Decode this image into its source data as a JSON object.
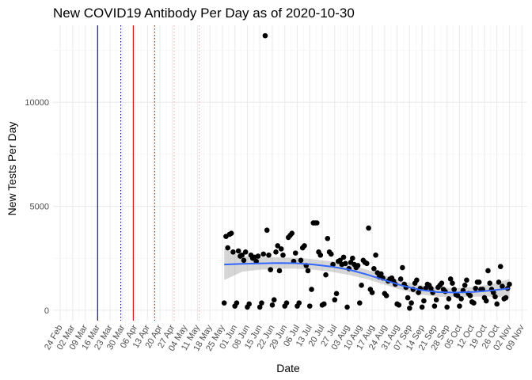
{
  "chart_data": {
    "type": "scatter",
    "title": "New COVID19 Antibody Per Day as of 2020-10-30",
    "xlabel": "Date",
    "ylabel": "New Tests Per Day",
    "x_range": [
      "2020-02-20",
      "2020-11-12"
    ],
    "ylim": [
      -500,
      13700
    ],
    "y_ticks": [
      0,
      5000,
      10000
    ],
    "y_tick_labels": [
      "0",
      "5000",
      "10000"
    ],
    "x_ticks": [
      "2020-02-24",
      "2020-03-02",
      "2020-03-09",
      "2020-03-16",
      "2020-03-23",
      "2020-03-30",
      "2020-04-06",
      "2020-04-13",
      "2020-04-20",
      "2020-04-27",
      "2020-05-04",
      "2020-05-11",
      "2020-05-18",
      "2020-05-25",
      "2020-06-01",
      "2020-06-08",
      "2020-06-15",
      "2020-06-22",
      "2020-06-29",
      "2020-07-06",
      "2020-07-13",
      "2020-07-20",
      "2020-07-27",
      "2020-08-03",
      "2020-08-10",
      "2020-08-17",
      "2020-08-24",
      "2020-08-31",
      "2020-09-07",
      "2020-09-14",
      "2020-09-21",
      "2020-09-28",
      "2020-10-05",
      "2020-10-12",
      "2020-10-19",
      "2020-10-26",
      "2020-11-02",
      "2020-11-09"
    ],
    "x_tick_labels": [
      "24 Feb",
      "02 Mar",
      "09 Mar",
      "16 Mar",
      "23 Mar",
      "30 Mar",
      "06 Apr",
      "13 Apr",
      "20 Apr",
      "27 Apr",
      "04 May",
      "11 May",
      "18 May",
      "25 May",
      "01 Jun",
      "08 Jun",
      "15 Jun",
      "22 Jun",
      "29 Jun",
      "06 Jul",
      "13 Jul",
      "20 Jul",
      "27 Jul",
      "03 Aug",
      "10 Aug",
      "17 Aug",
      "24 Aug",
      "31 Aug",
      "07 Sep",
      "14 Sep",
      "21 Sep",
      "28 Sep",
      "05 Oct",
      "12 Oct",
      "19 Oct",
      "26 Oct",
      "02 Nov",
      "09 Nov"
    ],
    "grid": true,
    "vertical_lines": [
      {
        "x": "2020-03-16",
        "color": "#00008b",
        "style": "solid"
      },
      {
        "x": "2020-03-29",
        "color": "#00008b",
        "style": "dotted"
      },
      {
        "x": "2020-04-05",
        "color": "#cc0000",
        "style": "solid"
      },
      {
        "x": "2020-04-17",
        "color": "#cc0000",
        "style": "dotted"
      },
      {
        "x": "2020-04-28",
        "color": "#f4b0b0",
        "style": "dotted"
      },
      {
        "x": "2020-05-12",
        "color": "#f4b0b0",
        "style": "dotted"
      }
    ],
    "point_color": "#000000",
    "trend_color": "#3366ff",
    "band_color": "#999999",
    "points": [
      {
        "x": "2020-05-26",
        "y": 350
      },
      {
        "x": "2020-05-27",
        "y": 3550
      },
      {
        "x": "2020-05-28",
        "y": 3000
      },
      {
        "x": "2020-05-29",
        "y": 3650
      },
      {
        "x": "2020-05-30",
        "y": 3700
      },
      {
        "x": "2020-05-31",
        "y": 2800
      },
      {
        "x": "2020-06-01",
        "y": 200
      },
      {
        "x": "2020-06-02",
        "y": 350
      },
      {
        "x": "2020-06-03",
        "y": 2850
      },
      {
        "x": "2020-06-04",
        "y": 2600
      },
      {
        "x": "2020-06-05",
        "y": 2650
      },
      {
        "x": "2020-06-06",
        "y": 2400
      },
      {
        "x": "2020-06-07",
        "y": 2800
      },
      {
        "x": "2020-06-08",
        "y": 150
      },
      {
        "x": "2020-06-09",
        "y": 300
      },
      {
        "x": "2020-06-10",
        "y": 2650
      },
      {
        "x": "2020-06-11",
        "y": 2500
      },
      {
        "x": "2020-06-12",
        "y": 2550
      },
      {
        "x": "2020-06-13",
        "y": 2350
      },
      {
        "x": "2020-06-14",
        "y": 2600
      },
      {
        "x": "2020-06-15",
        "y": 150
      },
      {
        "x": "2020-06-16",
        "y": 350
      },
      {
        "x": "2020-06-17",
        "y": 2700
      },
      {
        "x": "2020-06-18",
        "y": 13200
      },
      {
        "x": "2020-06-19",
        "y": 3850
      },
      {
        "x": "2020-06-20",
        "y": 2650
      },
      {
        "x": "2020-06-21",
        "y": 1950
      },
      {
        "x": "2020-06-22",
        "y": 250
      },
      {
        "x": "2020-06-23",
        "y": 500
      },
      {
        "x": "2020-06-24",
        "y": 2800
      },
      {
        "x": "2020-06-25",
        "y": 3100
      },
      {
        "x": "2020-06-26",
        "y": 1900
      },
      {
        "x": "2020-06-27",
        "y": 2950
      },
      {
        "x": "2020-06-28",
        "y": 2650
      },
      {
        "x": "2020-06-29",
        "y": 200
      },
      {
        "x": "2020-06-30",
        "y": 350
      },
      {
        "x": "2020-07-01",
        "y": 3500
      },
      {
        "x": "2020-07-02",
        "y": 3600
      },
      {
        "x": "2020-07-03",
        "y": 3700
      },
      {
        "x": "2020-07-04",
        "y": 2350
      },
      {
        "x": "2020-07-05",
        "y": 2750
      },
      {
        "x": "2020-07-06",
        "y": 200
      },
      {
        "x": "2020-07-07",
        "y": 350
      },
      {
        "x": "2020-07-08",
        "y": 2400
      },
      {
        "x": "2020-07-09",
        "y": 3000
      },
      {
        "x": "2020-07-10",
        "y": 3100
      },
      {
        "x": "2020-07-11",
        "y": 2150
      },
      {
        "x": "2020-07-12",
        "y": 1900
      },
      {
        "x": "2020-07-13",
        "y": 200
      },
      {
        "x": "2020-07-14",
        "y": 1000
      },
      {
        "x": "2020-07-15",
        "y": 4200
      },
      {
        "x": "2020-07-16",
        "y": 4200
      },
      {
        "x": "2020-07-17",
        "y": 4200
      },
      {
        "x": "2020-07-18",
        "y": 2800
      },
      {
        "x": "2020-07-19",
        "y": 2650
      },
      {
        "x": "2020-07-20",
        "y": 250
      },
      {
        "x": "2020-07-21",
        "y": 300
      },
      {
        "x": "2020-07-22",
        "y": 1700
      },
      {
        "x": "2020-07-23",
        "y": 3450
      },
      {
        "x": "2020-07-24",
        "y": 2800
      },
      {
        "x": "2020-07-25",
        "y": 2700
      },
      {
        "x": "2020-07-26",
        "y": 2200
      },
      {
        "x": "2020-07-27",
        "y": 500
      },
      {
        "x": "2020-07-28",
        "y": 800
      },
      {
        "x": "2020-07-29",
        "y": 2350
      },
      {
        "x": "2020-07-30",
        "y": 2400
      },
      {
        "x": "2020-07-31",
        "y": 2200
      },
      {
        "x": "2020-08-01",
        "y": 2550
      },
      {
        "x": "2020-08-02",
        "y": 2250
      },
      {
        "x": "2020-08-03",
        "y": 150
      },
      {
        "x": "2020-08-04",
        "y": 2000
      },
      {
        "x": "2020-08-05",
        "y": 2300
      },
      {
        "x": "2020-08-06",
        "y": 2500
      },
      {
        "x": "2020-08-07",
        "y": 2200
      },
      {
        "x": "2020-08-08",
        "y": 2050
      },
      {
        "x": "2020-08-09",
        "y": 2150
      },
      {
        "x": "2020-08-10",
        "y": 350
      },
      {
        "x": "2020-08-11",
        "y": 1200
      },
      {
        "x": "2020-08-12",
        "y": 2400
      },
      {
        "x": "2020-08-13",
        "y": 2300
      },
      {
        "x": "2020-08-14",
        "y": 2250
      },
      {
        "x": "2020-08-15",
        "y": 3950
      },
      {
        "x": "2020-08-16",
        "y": 1000
      },
      {
        "x": "2020-08-17",
        "y": 850
      },
      {
        "x": "2020-08-18",
        "y": 2000
      },
      {
        "x": "2020-08-19",
        "y": 2650
      },
      {
        "x": "2020-08-20",
        "y": 1800
      },
      {
        "x": "2020-08-21",
        "y": 1600
      },
      {
        "x": "2020-08-22",
        "y": 1750
      },
      {
        "x": "2020-08-23",
        "y": 1550
      },
      {
        "x": "2020-08-24",
        "y": 800
      },
      {
        "x": "2020-08-25",
        "y": 700
      },
      {
        "x": "2020-08-26",
        "y": 1400
      },
      {
        "x": "2020-08-27",
        "y": 1500
      },
      {
        "x": "2020-08-28",
        "y": 1550
      },
      {
        "x": "2020-08-29",
        "y": 1400
      },
      {
        "x": "2020-08-30",
        "y": 1250
      },
      {
        "x": "2020-08-31",
        "y": 300
      },
      {
        "x": "2020-09-01",
        "y": 250
      },
      {
        "x": "2020-09-02",
        "y": 1500
      },
      {
        "x": "2020-09-03",
        "y": 2050
      },
      {
        "x": "2020-09-04",
        "y": 1250
      },
      {
        "x": "2020-09-05",
        "y": 1100
      },
      {
        "x": "2020-09-06",
        "y": 600
      },
      {
        "x": "2020-09-07",
        "y": 100
      },
      {
        "x": "2020-09-08",
        "y": 350
      },
      {
        "x": "2020-09-09",
        "y": 1000
      },
      {
        "x": "2020-09-10",
        "y": 1300
      },
      {
        "x": "2020-09-11",
        "y": 1450
      },
      {
        "x": "2020-09-12",
        "y": 850
      },
      {
        "x": "2020-09-13",
        "y": 1050
      },
      {
        "x": "2020-09-14",
        "y": 150
      },
      {
        "x": "2020-09-15",
        "y": 450
      },
      {
        "x": "2020-09-16",
        "y": 1050
      },
      {
        "x": "2020-09-17",
        "y": 1250
      },
      {
        "x": "2020-09-18",
        "y": 1200
      },
      {
        "x": "2020-09-19",
        "y": 1050
      },
      {
        "x": "2020-09-20",
        "y": 850
      },
      {
        "x": "2020-09-21",
        "y": 200
      },
      {
        "x": "2020-09-22",
        "y": 500
      },
      {
        "x": "2020-09-23",
        "y": 1100
      },
      {
        "x": "2020-09-24",
        "y": 1200
      },
      {
        "x": "2020-09-25",
        "y": 1300
      },
      {
        "x": "2020-09-26",
        "y": 1000
      },
      {
        "x": "2020-09-27",
        "y": 900
      },
      {
        "x": "2020-09-28",
        "y": 150
      },
      {
        "x": "2020-09-29",
        "y": 550
      },
      {
        "x": "2020-09-30",
        "y": 1500
      },
      {
        "x": "2020-10-01",
        "y": 1300
      },
      {
        "x": "2020-10-02",
        "y": 1000
      },
      {
        "x": "2020-10-03",
        "y": 750
      },
      {
        "x": "2020-10-04",
        "y": 700
      },
      {
        "x": "2020-10-05",
        "y": 200
      },
      {
        "x": "2020-10-06",
        "y": 550
      },
      {
        "x": "2020-10-07",
        "y": 950
      },
      {
        "x": "2020-10-08",
        "y": 1200
      },
      {
        "x": "2020-10-09",
        "y": 1450
      },
      {
        "x": "2020-10-10",
        "y": 800
      },
      {
        "x": "2020-10-11",
        "y": 700
      },
      {
        "x": "2020-10-12",
        "y": 400
      },
      {
        "x": "2020-10-13",
        "y": 350
      },
      {
        "x": "2020-10-14",
        "y": 1050
      },
      {
        "x": "2020-10-15",
        "y": 1350
      },
      {
        "x": "2020-10-16",
        "y": 1350
      },
      {
        "x": "2020-10-17",
        "y": 1000
      },
      {
        "x": "2020-10-18",
        "y": 1000
      },
      {
        "x": "2020-10-19",
        "y": 600
      },
      {
        "x": "2020-10-20",
        "y": 450
      },
      {
        "x": "2020-10-21",
        "y": 1900
      },
      {
        "x": "2020-10-22",
        "y": 1300
      },
      {
        "x": "2020-10-23",
        "y": 1000
      },
      {
        "x": "2020-10-24",
        "y": 850
      },
      {
        "x": "2020-10-25",
        "y": 650
      },
      {
        "x": "2020-10-26",
        "y": 300
      },
      {
        "x": "2020-10-27",
        "y": 1350
      },
      {
        "x": "2020-10-28",
        "y": 2100
      },
      {
        "x": "2020-10-29",
        "y": 1150
      },
      {
        "x": "2020-10-30",
        "y": 550
      },
      {
        "x": "2020-10-31",
        "y": 600
      },
      {
        "x": "2020-11-01",
        "y": 1050
      },
      {
        "x": "2020-11-02",
        "y": 1250
      }
    ],
    "trend": [
      {
        "x": "2020-05-26",
        "y": 2200,
        "lo": 1450,
        "hi": 2950
      },
      {
        "x": "2020-06-05",
        "y": 2230,
        "lo": 1850,
        "hi": 2600
      },
      {
        "x": "2020-06-15",
        "y": 2250,
        "lo": 1950,
        "hi": 2550
      },
      {
        "x": "2020-06-25",
        "y": 2270,
        "lo": 2000,
        "hi": 2540
      },
      {
        "x": "2020-07-05",
        "y": 2260,
        "lo": 2000,
        "hi": 2520
      },
      {
        "x": "2020-07-15",
        "y": 2200,
        "lo": 1950,
        "hi": 2450
      },
      {
        "x": "2020-07-25",
        "y": 2100,
        "lo": 1850,
        "hi": 2350
      },
      {
        "x": "2020-08-04",
        "y": 1950,
        "lo": 1700,
        "hi": 2200
      },
      {
        "x": "2020-08-14",
        "y": 1720,
        "lo": 1500,
        "hi": 1950
      },
      {
        "x": "2020-08-24",
        "y": 1450,
        "lo": 1230,
        "hi": 1680
      },
      {
        "x": "2020-09-03",
        "y": 1180,
        "lo": 960,
        "hi": 1400
      },
      {
        "x": "2020-09-13",
        "y": 980,
        "lo": 760,
        "hi": 1200
      },
      {
        "x": "2020-09-23",
        "y": 870,
        "lo": 650,
        "hi": 1090
      },
      {
        "x": "2020-10-03",
        "y": 850,
        "lo": 630,
        "hi": 1070
      },
      {
        "x": "2020-10-13",
        "y": 880,
        "lo": 650,
        "hi": 1110
      },
      {
        "x": "2020-10-23",
        "y": 950,
        "lo": 650,
        "hi": 1250
      },
      {
        "x": "2020-11-02",
        "y": 1050,
        "lo": 600,
        "hi": 1500
      }
    ]
  }
}
